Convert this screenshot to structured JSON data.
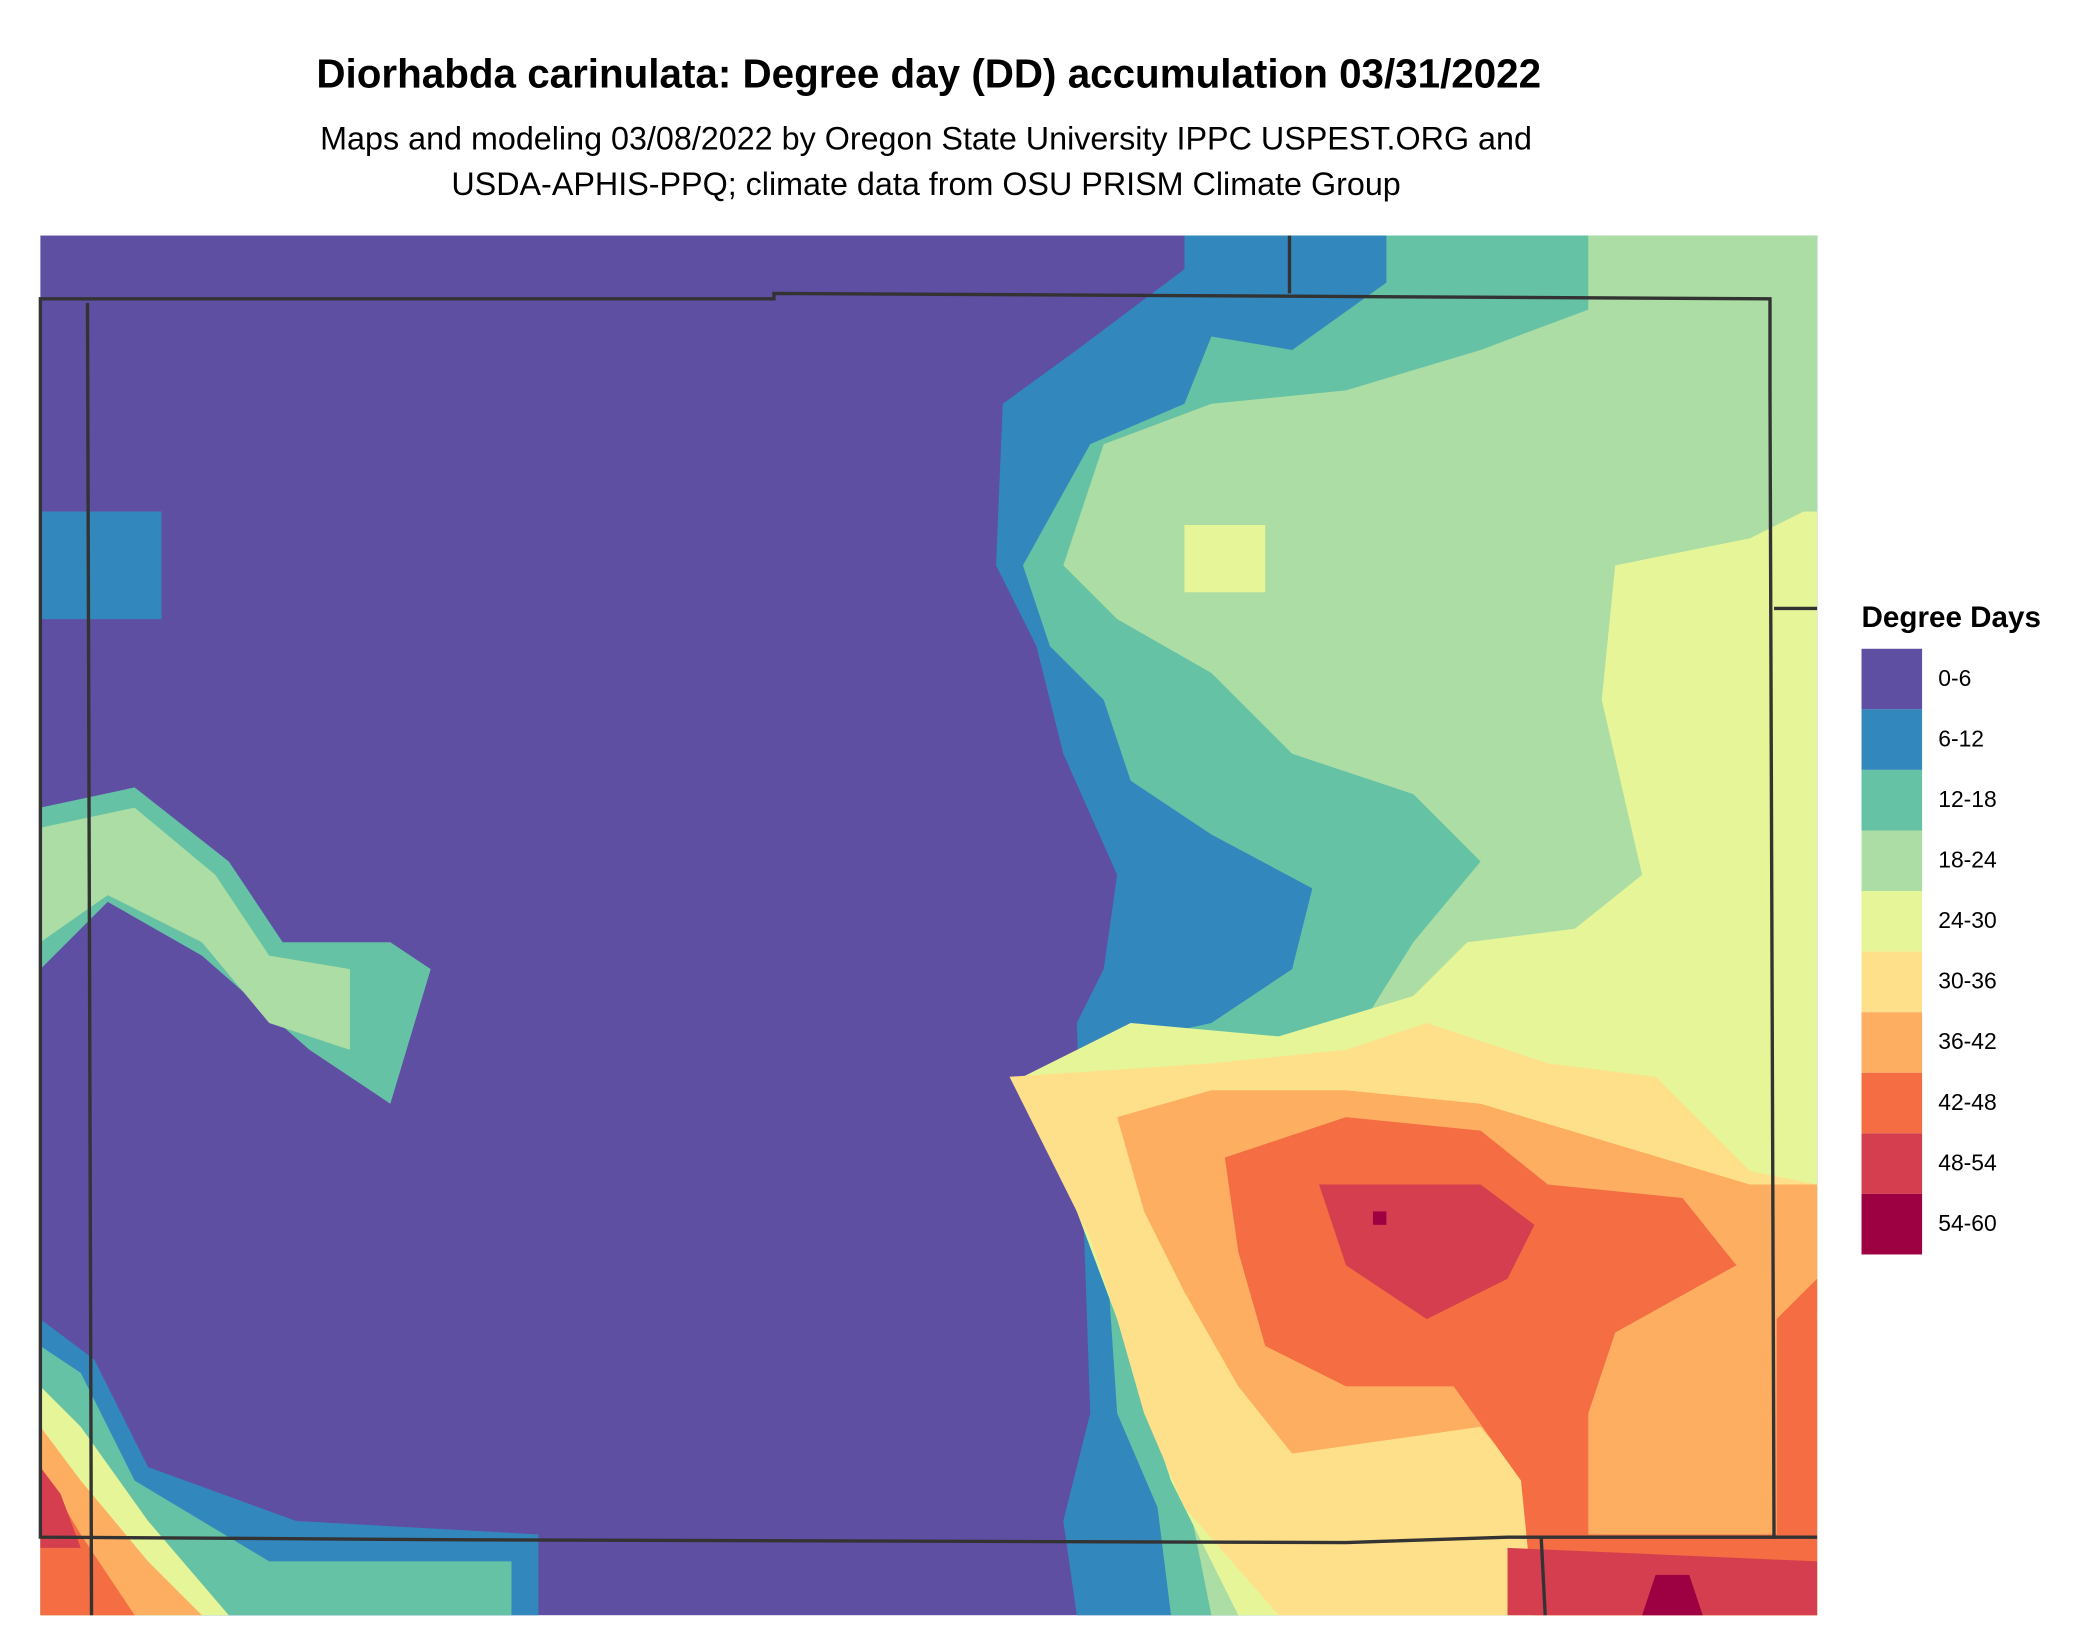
{
  "title": "Diorhabda carinulata: Degree day (DD) accumulation 03/31/2022",
  "subtitle": [
    "Maps and modeling 03/08/2022 by Oregon State University IPPC USPEST.ORG and",
    "USDA-APHIS-PPQ; climate data from OSU PRISM Climate Group"
  ],
  "legend": {
    "title": "Degree Days",
    "items": [
      {
        "label": "0-6",
        "color": "#5e4fa2"
      },
      {
        "label": "6-12",
        "color": "#3288bd"
      },
      {
        "label": "12-18",
        "color": "#66c2a5"
      },
      {
        "label": "18-24",
        "color": "#abdda4"
      },
      {
        "label": "24-30",
        "color": "#e6f598"
      },
      {
        "label": "30-36",
        "color": "#fee08b"
      },
      {
        "label": "36-42",
        "color": "#fdae61"
      },
      {
        "label": "42-48",
        "color": "#f46d43"
      },
      {
        "label": "48-54",
        "color": "#d53e4f"
      },
      {
        "label": "54-60",
        "color": "#9e0142"
      }
    ]
  }
}
